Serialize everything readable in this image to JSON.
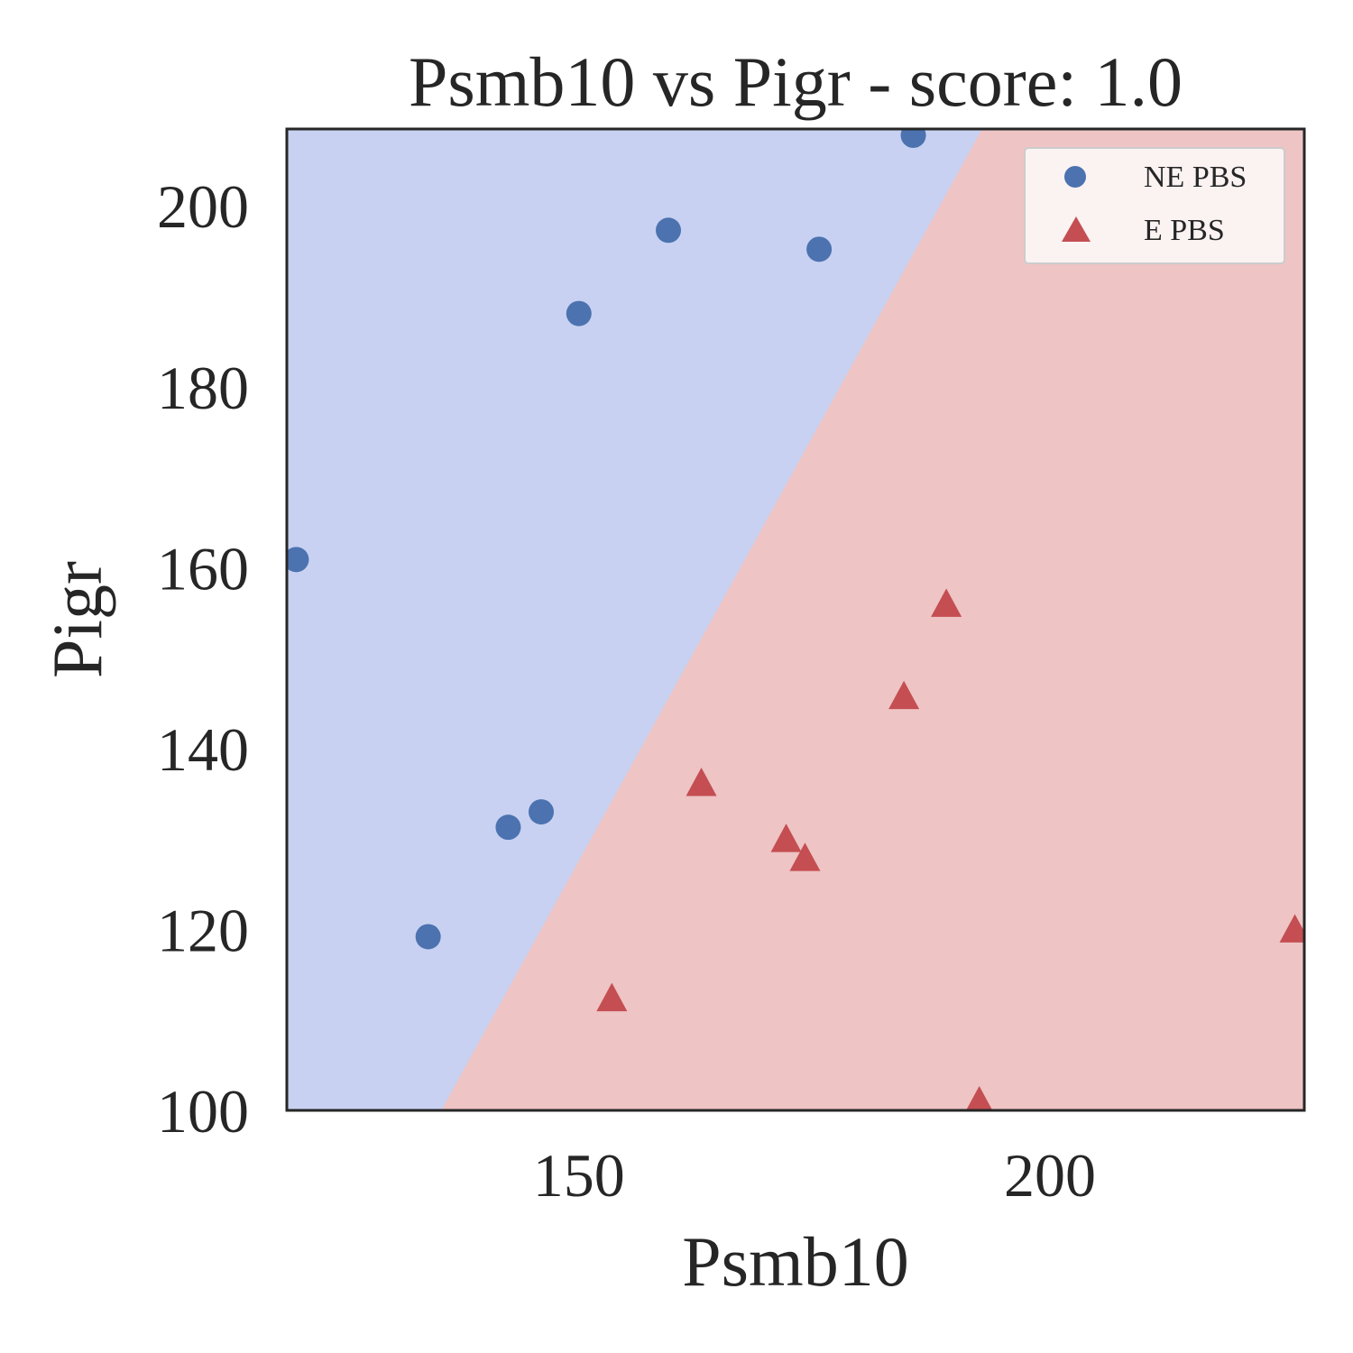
{
  "chart_data": {
    "type": "scatter",
    "title": "Psmb10 vs Pigr - score: 1.0",
    "xlabel": "Psmb10",
    "ylabel": "Pigr",
    "xlim": [
      119,
      227
    ],
    "ylim": [
      100,
      208.5
    ],
    "xticks": [
      150,
      200
    ],
    "yticks": [
      100,
      120,
      140,
      160,
      180,
      200
    ],
    "grid": false,
    "legend_position": "top-right",
    "decision_boundary": {
      "description": "linear boundary separating regions",
      "line_points": [
        [
          135.4,
          100
        ],
        [
          192.8,
          208.5
        ]
      ],
      "left_region_color": "#c8d1f1",
      "right_region_color": "#eec4c4"
    },
    "series": [
      {
        "name": "NE PBS",
        "marker": "circle",
        "color": "#4c72b0",
        "points": [
          [
            120.0,
            160.9
          ],
          [
            134.0,
            119.2
          ],
          [
            142.5,
            131.3
          ],
          [
            146.0,
            133.0
          ],
          [
            150.0,
            188.1
          ],
          [
            159.5,
            197.3
          ],
          [
            175.5,
            195.2
          ],
          [
            185.5,
            207.8
          ]
        ]
      },
      {
        "name": "E PBS",
        "marker": "triangle",
        "color": "#c44e52",
        "points": [
          [
            153.5,
            112.4
          ],
          [
            163.0,
            136.2
          ],
          [
            172.0,
            130.0
          ],
          [
            174.0,
            127.9
          ],
          [
            184.5,
            145.8
          ],
          [
            189.0,
            156.0
          ],
          [
            192.5,
            101.0
          ],
          [
            226.0,
            120.0
          ]
        ]
      }
    ]
  }
}
